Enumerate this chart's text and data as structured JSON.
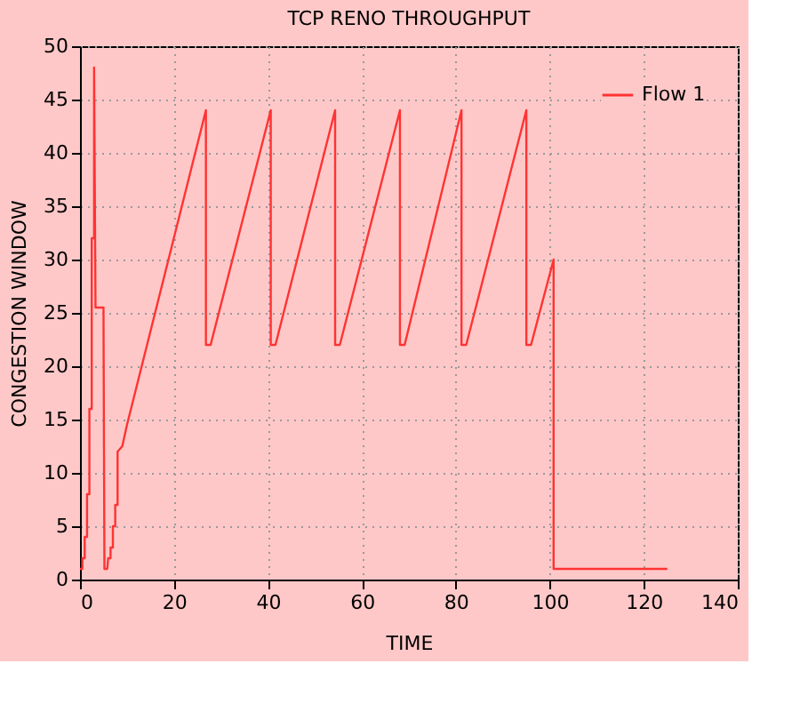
{
  "chart_data": {
    "type": "line",
    "title": "TCP RENO THROUGHPUT",
    "xlabel": "TIME",
    "ylabel": "CONGESTION WINDOW",
    "series": [
      {
        "name": "Flow 1",
        "color": "#ff3333",
        "x": [
          0,
          0.5,
          0.5,
          1,
          1,
          1.5,
          1.5,
          2,
          2,
          2.5,
          2.5,
          3,
          3,
          3.3,
          5,
          5.2,
          5.8,
          6,
          6.5,
          6.5,
          7,
          7,
          7.5,
          7.5,
          8,
          8,
          9,
          10,
          26.8,
          26.8,
          27.8,
          40.6,
          40.6,
          41.6,
          54.3,
          54.3,
          55.3,
          68.1,
          68.1,
          69.1,
          81.2,
          81.2,
          82.2,
          95.0,
          95.0,
          96.0,
          100.8,
          100.8,
          125
        ],
        "values": [
          1,
          1,
          2,
          2,
          4,
          4,
          8,
          8,
          16,
          16,
          32,
          32,
          48,
          25.5,
          25.5,
          1,
          1,
          2,
          2,
          3,
          3,
          5,
          5,
          7,
          7,
          12,
          12.5,
          14.5,
          44,
          22,
          22,
          44,
          22,
          22,
          44,
          22,
          22,
          44,
          22,
          22,
          44,
          22,
          22,
          44,
          22,
          22,
          30,
          1,
          1
        ]
      }
    ],
    "xlim": [
      0,
      140
    ],
    "xticks": [
      0,
      20,
      40,
      60,
      80,
      100,
      120,
      140
    ],
    "ylim": [
      0,
      50
    ],
    "yticks": [
      0,
      5,
      10,
      15,
      20,
      25,
      30,
      35,
      40,
      45,
      50
    ],
    "grid": true,
    "legend": "top right",
    "line_style": "solid",
    "marker": "none"
  }
}
